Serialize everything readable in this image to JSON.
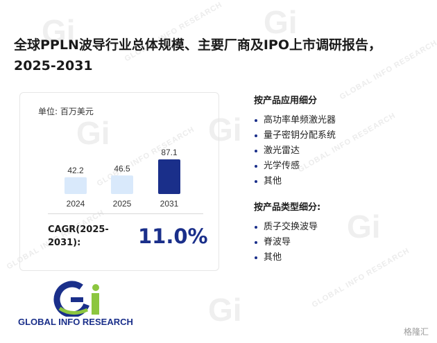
{
  "title": "全球PPLN波导行业总体规模、主要厂商及IPO上市调研报告，2025-2031",
  "unit_label": "单位: 百万美元",
  "chart_data": {
    "type": "bar",
    "categories": [
      "2024",
      "2025",
      "2031"
    ],
    "values": [
      42.2,
      46.5,
      87.1
    ],
    "colors": [
      "#d9e9fb",
      "#d9e9fb",
      "#1a2f8a"
    ],
    "ylabel": "",
    "xlabel": ""
  },
  "cagr": {
    "label": "CAGR(2025-2031):",
    "value": "11.0%"
  },
  "segment_application": {
    "heading": "按产品应用细分",
    "items": [
      "高功率单频激光器",
      "量子密钥分配系统",
      "激光雷达",
      "光学传感",
      "其他"
    ]
  },
  "segment_type": {
    "heading": "按产品类型细分:",
    "items": [
      "质子交换波导",
      "脊波导",
      "其他"
    ]
  },
  "logo": {
    "text": "GLOBAL INFO RESEARCH",
    "brand_colors": [
      "#1a2f8a",
      "#8cc63f"
    ]
  },
  "watermark": {
    "text": "GLOBAL INFO RESEARCH",
    "letters": "Gi"
  },
  "brand_mark": "格隆汇"
}
